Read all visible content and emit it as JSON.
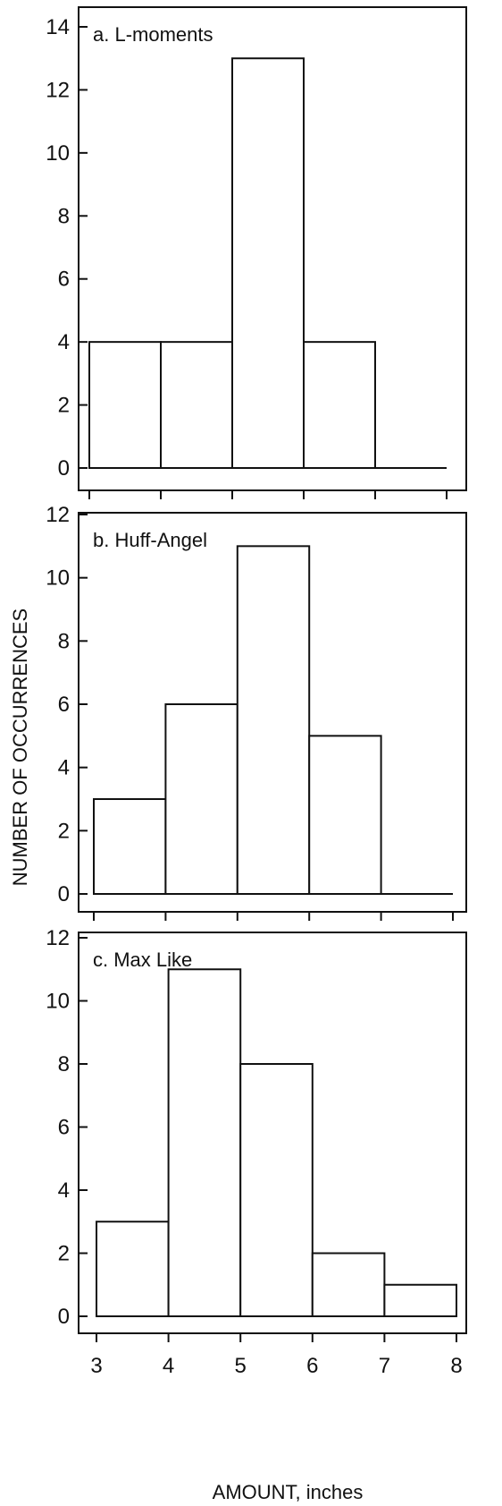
{
  "chart_data": [
    {
      "type": "bar",
      "title": "a. L-moments",
      "bin_edges": [
        3,
        4,
        5,
        6,
        7,
        8
      ],
      "values": [
        4,
        4,
        13,
        4,
        0
      ],
      "ylim": [
        0,
        14
      ],
      "yticks": [
        "0",
        "2",
        "4",
        "6",
        "8",
        "10",
        "12",
        "14"
      ],
      "ytick_values": [
        0,
        2,
        4,
        6,
        8,
        10,
        12,
        14
      ],
      "xlim": [
        3,
        8
      ]
    },
    {
      "type": "bar",
      "title": "b. Huff-Angel",
      "bin_edges": [
        3,
        4,
        5,
        6,
        7,
        8
      ],
      "values": [
        3,
        6,
        11,
        5,
        0
      ],
      "ylim": [
        0,
        12
      ],
      "yticks": [
        "0",
        "2",
        "4",
        "6",
        "8",
        "10",
        "12"
      ],
      "ytick_values": [
        0,
        2,
        4,
        6,
        8,
        10,
        12
      ],
      "xlim": [
        3,
        8
      ]
    },
    {
      "type": "bar",
      "title": "c. Max Like",
      "bin_edges": [
        3,
        4,
        5,
        6,
        7,
        8
      ],
      "values": [
        3,
        11,
        8,
        2,
        1
      ],
      "ylim": [
        0,
        12
      ],
      "yticks": [
        "0",
        "2",
        "4",
        "6",
        "8",
        "10",
        "12"
      ],
      "ytick_values": [
        0,
        2,
        4,
        6,
        8,
        10,
        12
      ],
      "xlim": [
        3,
        8
      ],
      "xticks": [
        "3",
        "4",
        "5",
        "6",
        "7",
        "8"
      ],
      "xtick_values": [
        3,
        4,
        5,
        6,
        7,
        8
      ]
    }
  ],
  "ylabel": "NUMBER OF OCCURRENCES",
  "xlabel": "AMOUNT, inches"
}
